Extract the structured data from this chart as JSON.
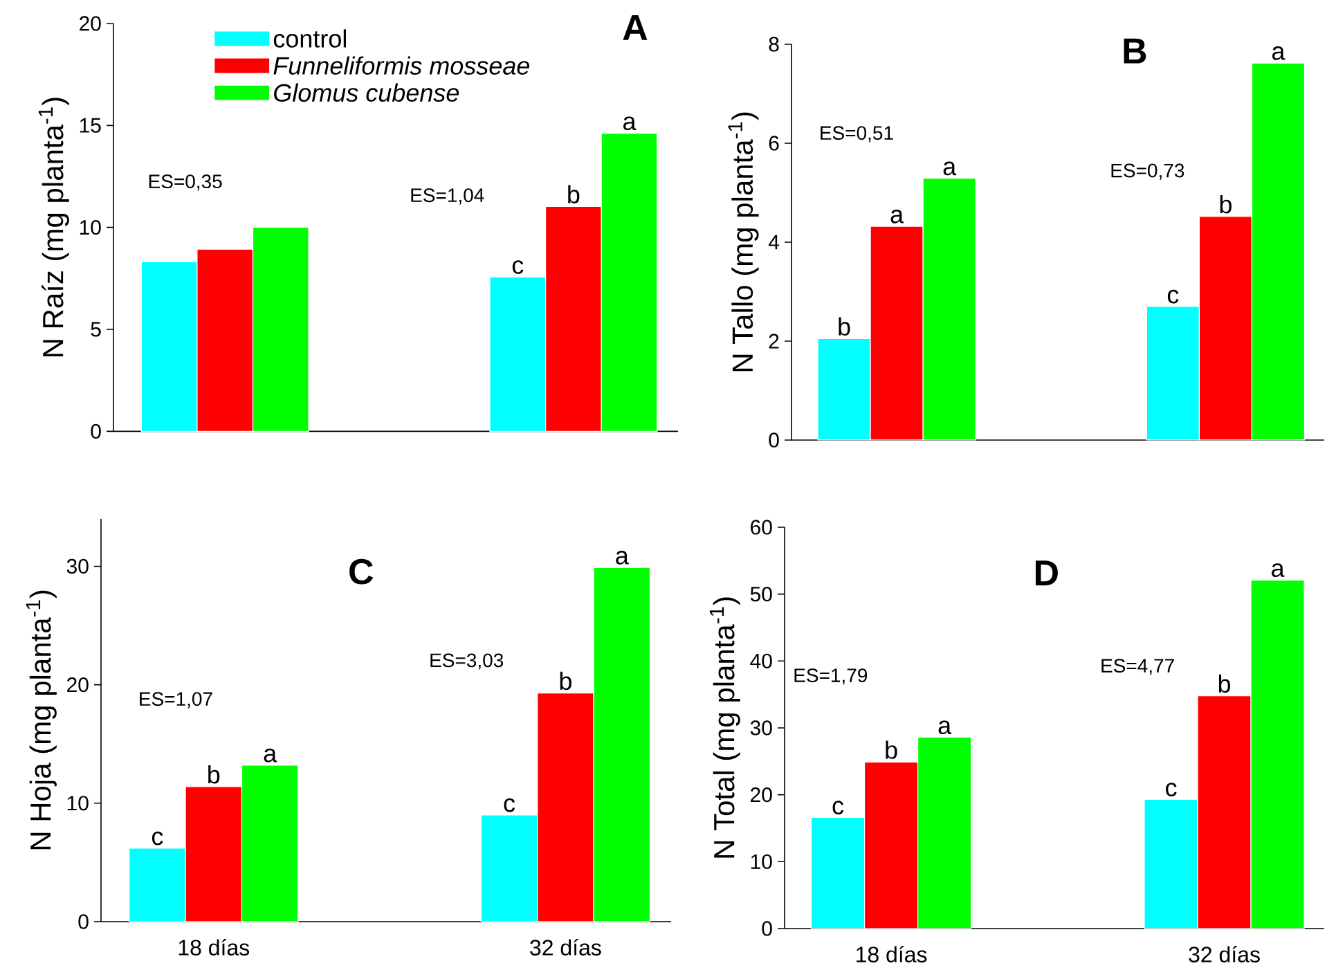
{
  "chart_data": [
    {
      "type": "bar",
      "title": "A",
      "ylabel": "N Raíz (mg planta$^{-1}$)",
      "categories": [
        null,
        null
      ],
      "tick_labels": "y",
      "legend": "top",
      "ylim": [
        0,
        20
      ],
      "yticks": [
        0,
        5,
        10,
        15,
        20
      ],
      "annotations": [
        "ES=0,35",
        "ES=1,04"
      ],
      "series": [
        {
          "name": "control",
          "color": "#00ffff",
          "values": [
            8.32,
            7.57
          ],
          "value_labels": [
            null,
            "c"
          ]
        },
        {
          "name": "Funneliformis mosseae",
          "color": "#ff0000",
          "values": [
            8.93,
            11.03
          ],
          "value_labels": [
            null,
            "b"
          ]
        },
        {
          "name": "Glomus cubense",
          "color": "#00ff00",
          "values": [
            10.01,
            14.62
          ],
          "value_labels": [
            null,
            "a"
          ]
        }
      ]
    },
    {
      "type": "bar",
      "title": "B",
      "ylabel": "N Tallo (mg planta$^{-1}$)",
      "categories": [
        null,
        null
      ],
      "tick_labels": "y",
      "ylim": [
        0,
        8
      ],
      "yticks": [
        0,
        2,
        4,
        6,
        8
      ],
      "annotations": [
        "ES=0,51",
        "ES=0,73"
      ],
      "series": [
        {
          "color": "#00ffff",
          "values": [
            2.05,
            2.7
          ],
          "value_labels": [
            "b",
            "c"
          ]
        },
        {
          "color": "#ff0000",
          "values": [
            4.32,
            4.52
          ],
          "value_labels": [
            "a",
            "b"
          ]
        },
        {
          "color": "#00ff00",
          "values": [
            5.29,
            7.62
          ],
          "value_labels": [
            "a",
            "a"
          ]
        }
      ]
    },
    {
      "type": "bar",
      "title": "C",
      "ylabel": "N Hoja (mg planta$^{-1}$)",
      "categories": [
        "18 días",
        "32 días"
      ],
      "ylim": [
        0,
        34
      ],
      "yticks": [
        0,
        10,
        20,
        30
      ],
      "annotations": [
        "ES=1,07",
        "ES=3,03"
      ],
      "series": [
        {
          "color": "#00ffff",
          "values": [
            6.2,
            9.0
          ],
          "value_labels": [
            "c",
            "c"
          ]
        },
        {
          "color": "#ff0000",
          "values": [
            11.4,
            19.3
          ],
          "value_labels": [
            "b",
            "b"
          ]
        },
        {
          "color": "#00ff00",
          "values": [
            13.2,
            29.9
          ],
          "value_labels": [
            "a",
            "a"
          ]
        }
      ]
    },
    {
      "type": "bar",
      "title": "D",
      "ylabel": "N Total (mg planta$^{-1}$)",
      "categories": [
        "18 días",
        "32 días"
      ],
      "ylim": [
        0,
        60
      ],
      "yticks": [
        0,
        10,
        20,
        30,
        40,
        50,
        60
      ],
      "annotations": [
        "ES=1,79",
        "ES=4,77"
      ],
      "series": [
        {
          "color": "#00ffff",
          "values": [
            16.6,
            19.3
          ],
          "value_labels": [
            "c",
            "c"
          ]
        },
        {
          "color": "#ff0000",
          "values": [
            24.9,
            34.8
          ],
          "value_labels": [
            "b",
            "b"
          ]
        },
        {
          "color": "#00ff00",
          "values": [
            28.6,
            52.1
          ],
          "value_labels": [
            "a",
            "a"
          ]
        }
      ]
    }
  ]
}
